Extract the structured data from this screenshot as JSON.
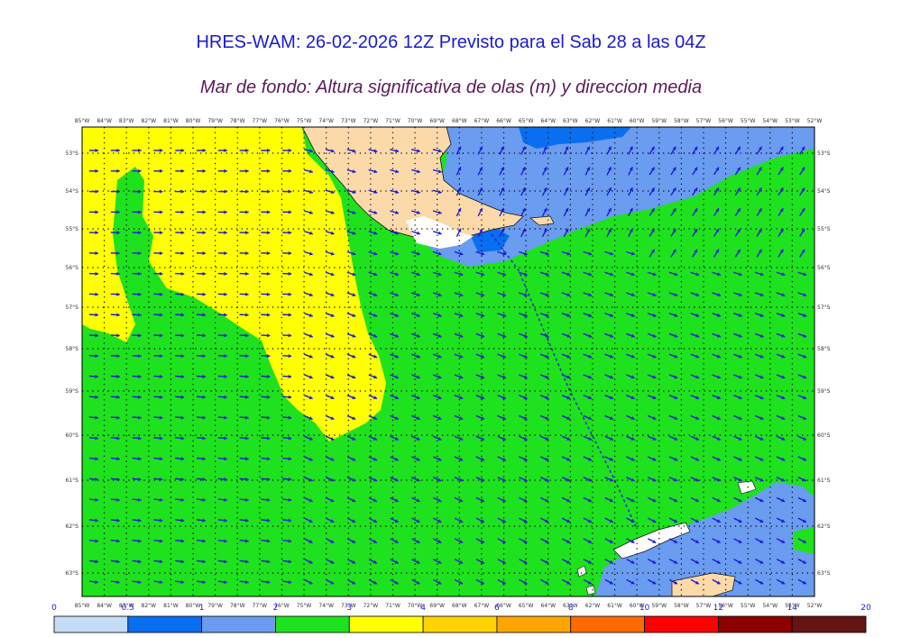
{
  "title": "HRES-WAM: 26-02-2026 12Z Previsto para el Sab 28 a las 04Z",
  "subtitle": "Mar de fondo: Altura significativa de olas (m) y direccion media",
  "lon_labels": [
    "85°W",
    "84°W",
    "83°W",
    "82°W",
    "81°W",
    "80°W",
    "79°W",
    "78°W",
    "77°W",
    "76°W",
    "75°W",
    "74°W",
    "73°W",
    "72°W",
    "71°W",
    "70°W",
    "69°W",
    "68°W",
    "67°W",
    "66°W",
    "65°W",
    "64°W",
    "63°W",
    "62°W",
    "61°W",
    "60°W",
    "59°W",
    "58°W",
    "57°W",
    "56°W",
    "55°W",
    "54°W",
    "53°W",
    "52°W"
  ],
  "lat_labels": [
    "53°S",
    "54°S",
    "55°S",
    "56°S",
    "57°S",
    "58°S",
    "59°S",
    "60°S",
    "61°S",
    "62°S",
    "63°S"
  ],
  "colorbar": {
    "ticks": [
      "0",
      "0.5",
      "1",
      "2",
      "3",
      "4",
      "6",
      "8",
      "10",
      "12",
      "14",
      "20"
    ],
    "colors": [
      "#c6dcf4",
      "#0a6ef0",
      "#6a9cf0",
      "#1ee21e",
      "#ffff00",
      "#ffd200",
      "#ffa500",
      "#ff6a00",
      "#ff0000",
      "#8c0000",
      "#641414",
      "#3c3c3c"
    ]
  },
  "legend_colors": {
    "land": "#fcd9a9",
    "arrow": "#1a1ad6",
    "yellow_class": "#ffff00",
    "green_class": "#1ee21e",
    "lightblue_class": "#6a9cf0",
    "blue_class": "#0a6ef0"
  }
}
